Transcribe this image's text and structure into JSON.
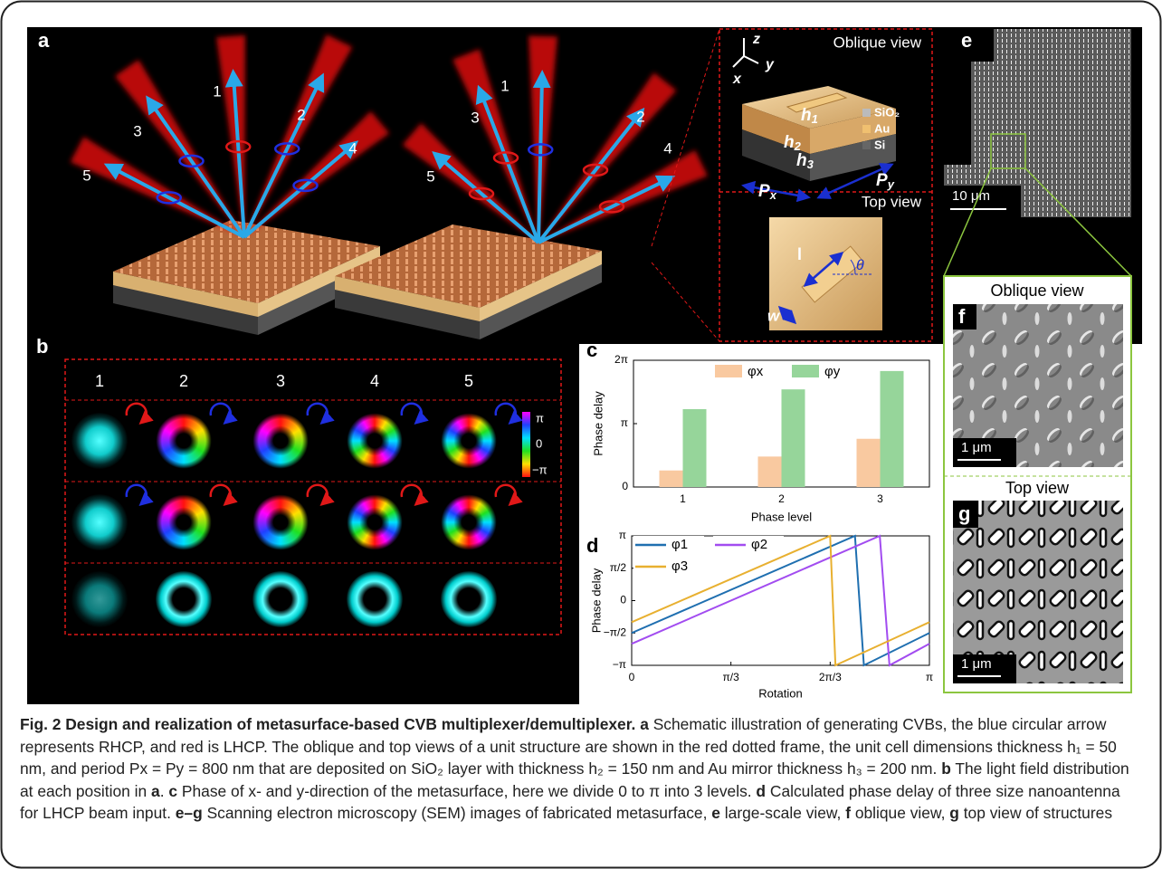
{
  "figure": {
    "a": {
      "label": "a",
      "left_beams": [
        "1",
        "2",
        "3",
        "4",
        "5"
      ],
      "right_beams": [
        "1",
        "2",
        "3",
        "4",
        "5"
      ],
      "oblique_title": "Oblique view",
      "axes": [
        "z",
        "y",
        "x"
      ],
      "layers": [
        "SiO₂",
        "Au",
        "Si"
      ],
      "dims": [
        {
          "main": "h",
          "sub": "1"
        },
        {
          "main": "h",
          "sub": "2"
        },
        {
          "main": "h",
          "sub": "3"
        },
        {
          "main": "P",
          "sub": "x"
        },
        {
          "main": "P",
          "sub": "y"
        }
      ],
      "top_title": "Top view",
      "top_dims": [
        "l",
        "θ",
        "w"
      ]
    },
    "b": {
      "label": "b",
      "columns": [
        "1",
        "2",
        "3",
        "4",
        "5"
      ],
      "colorbar": [
        "π",
        "0",
        "−π"
      ]
    },
    "e": {
      "label": "e",
      "scale": "10 μm"
    },
    "f": {
      "label": "f",
      "title": "Oblique view",
      "scale": "1 μm"
    },
    "g": {
      "label": "g",
      "title": "Top view",
      "scale": "1 μm"
    }
  },
  "chart_data": [
    {
      "type": "bar",
      "panel_label": "c",
      "categories": [
        "1",
        "2",
        "3"
      ],
      "series": [
        {
          "name": "φx",
          "color": "#f9c9a0",
          "values": [
            0.82,
            1.51,
            2.39
          ]
        },
        {
          "name": "φy",
          "color": "#96d59a",
          "values": [
            3.86,
            4.84,
            5.75
          ]
        }
      ],
      "ylim": [
        0,
        6.2832
      ],
      "yticks": [
        {
          "value": 0,
          "label": "0"
        },
        {
          "value": 3.1416,
          "label": "π"
        },
        {
          "value": 6.2832,
          "label": "2π"
        }
      ],
      "xlabel": "Phase level",
      "ylabel": "Phase delay"
    },
    {
      "type": "line",
      "panel_label": "d",
      "series": [
        {
          "name": "φ1",
          "color": "#1f6fb0",
          "x": [
            0,
            2.356,
            2.45,
            3.1416
          ],
          "values": [
            -1.571,
            3.1416,
            -3.1416,
            -1.571
          ]
        },
        {
          "name": "φ2",
          "color": "#a24cf0",
          "x": [
            0,
            2.618,
            2.72,
            3.1416
          ],
          "values": [
            -2.094,
            3.1416,
            -3.1416,
            -2.094
          ]
        },
        {
          "name": "φ3",
          "color": "#e8b030",
          "x": [
            0,
            2.094,
            2.15,
            3.1416
          ],
          "values": [
            -1.047,
            3.1416,
            -3.1416,
            -1.047
          ]
        }
      ],
      "xlim": [
        0,
        3.1416
      ],
      "xticks": [
        {
          "value": 0,
          "label": "0"
        },
        {
          "value": 1.0472,
          "label": "π/3"
        },
        {
          "value": 2.0944,
          "label": "2π/3"
        },
        {
          "value": 3.1416,
          "label": "π"
        }
      ],
      "ylim": [
        -3.1416,
        3.1416
      ],
      "yticks": [
        {
          "value": -3.1416,
          "label": "−π"
        },
        {
          "value": -1.5708,
          "label": "−π/2"
        },
        {
          "value": 0,
          "label": "0"
        },
        {
          "value": 1.5708,
          "label": "π/2"
        },
        {
          "value": 3.1416,
          "label": "π"
        }
      ],
      "xlabel": "Rotation",
      "ylabel": "Phase delay"
    }
  ],
  "caption": [
    {
      "text": "Fig. 2 Design and realization of metasurface-based CVB multiplexer/demultiplexer.",
      "bold": true
    },
    {
      "text": " a",
      "bold": true
    },
    {
      "text": " Schematic illustration of generating CVBs, the blue circular arrow represents RHCP, and red is LHCP. The oblique and top views of a unit structure are shown in the red dotted frame, the unit cell dimensions thickness h₁ = 50 nm, and period Px = Py = 800 nm that are deposited on SiO₂ layer with thickness h₂ = 150 nm and Au mirror thickness h₃ = 200 nm."
    },
    {
      "text": " b",
      "bold": true
    },
    {
      "text": " The light field distribution at each position in"
    },
    {
      "text": " a",
      "bold": true
    },
    {
      "text": "."
    },
    {
      "text": " c",
      "bold": true
    },
    {
      "text": " Phase of x- and y-direction of the metasurface, here we divide 0 to π into 3 levels."
    },
    {
      "text": " d",
      "bold": true
    },
    {
      "text": " Calculated phase delay of three size nanoantenna for LHCP beam input."
    },
    {
      "text": " e–g",
      "bold": true
    },
    {
      "text": " Scanning electron microscopy (SEM) images of fabricated metasurface,"
    },
    {
      "text": " e",
      "bold": true
    },
    {
      "text": " large-scale view,"
    },
    {
      "text": " f",
      "bold": true
    },
    {
      "text": " oblique view,"
    },
    {
      "text": " g",
      "bold": true
    },
    {
      "text": " top view of structures"
    }
  ]
}
